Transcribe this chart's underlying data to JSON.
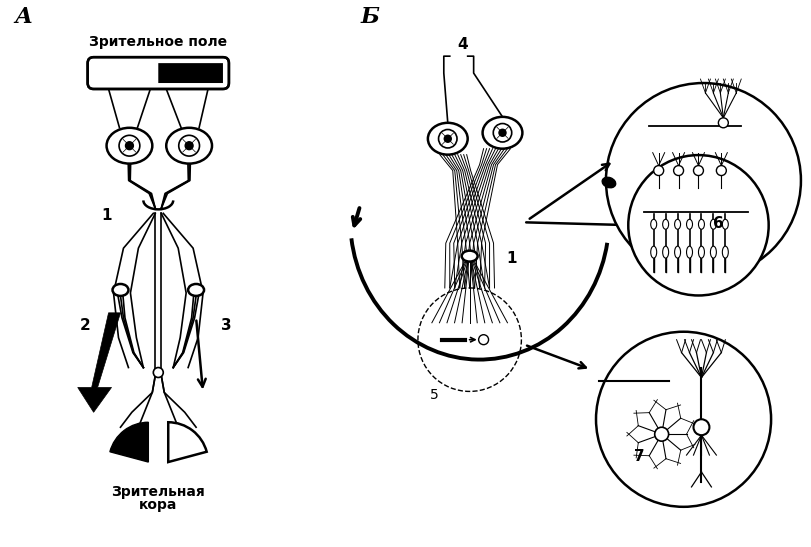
{
  "bg_color": "#ffffff",
  "line_color": "#000000",
  "title_A": "А",
  "title_B": "Б",
  "label_visual_field": "Зрительное поле",
  "label_visual_cortex_1": "Зрительная",
  "label_visual_cortex_2": "кора",
  "label_1": "1",
  "label_2": "2",
  "label_3": "3",
  "label_4": "4",
  "label_5": "5",
  "label_6": "6",
  "label_7": "7",
  "figsize": [
    8.11,
    5.47
  ],
  "dpi": 100
}
